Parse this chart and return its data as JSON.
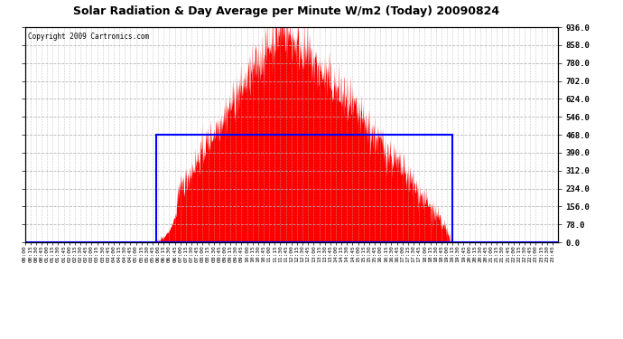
{
  "title": "Solar Radiation & Day Average per Minute W/m2 (Today) 20090824",
  "copyright": "Copyright 2009 Cartronics.com",
  "bg_color": "#ffffff",
  "plot_bg_color": "#ffffff",
  "grid_color": "#b0b0b0",
  "bar_color": "#ff0000",
  "line_color": "#0000ff",
  "ymin": 0.0,
  "ymax": 936.0,
  "yticks": [
    0.0,
    78.0,
    156.0,
    234.0,
    312.0,
    390.0,
    468.0,
    546.0,
    624.0,
    702.0,
    780.0,
    858.0,
    936.0
  ],
  "total_minutes": 1440,
  "sunrise_minute": 355,
  "sunset_minute": 1155,
  "day_avg": 468.0,
  "peak_minute": 695,
  "peak_value": 936.0,
  "tick_interval_minutes": 15
}
